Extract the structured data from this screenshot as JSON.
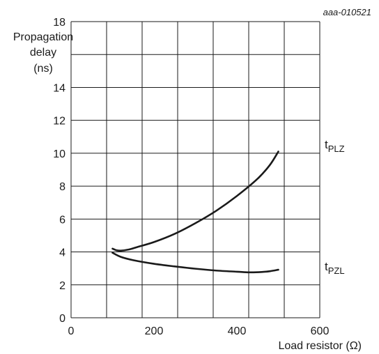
{
  "chart_data": {
    "type": "line",
    "reference": "aaa-010521",
    "ylabel": [
      "Propagation",
      "delay",
      "(ns)"
    ],
    "xlabel": "Load resistor (Ω)",
    "xlim": [
      0,
      600
    ],
    "ylim": [
      0,
      18
    ],
    "x_ticks": [
      0,
      200,
      400,
      600
    ],
    "y_ticks": [
      0,
      2,
      4,
      6,
      8,
      10,
      12,
      14,
      16,
      18
    ],
    "y_tick_labels": [
      "0",
      "2",
      "4",
      "6",
      "8",
      "10",
      "12",
      "14",
      "",
      "18"
    ],
    "grid": true,
    "series": [
      {
        "name": "tPLZ",
        "name_main": "t",
        "name_sub": "PLZ",
        "points": [
          [
            100,
            4.2
          ],
          [
            110,
            4.1
          ],
          [
            120,
            4.08
          ],
          [
            140,
            4.15
          ],
          [
            160,
            4.3
          ],
          [
            200,
            4.6
          ],
          [
            250,
            5.1
          ],
          [
            300,
            5.75
          ],
          [
            350,
            6.5
          ],
          [
            400,
            7.4
          ],
          [
            450,
            8.45
          ],
          [
            480,
            9.3
          ],
          [
            500,
            10.1
          ]
        ]
      },
      {
        "name": "tPZL",
        "name_main": "t",
        "name_sub": "PZL",
        "points": [
          [
            100,
            3.95
          ],
          [
            120,
            3.7
          ],
          [
            150,
            3.5
          ],
          [
            200,
            3.28
          ],
          [
            250,
            3.12
          ],
          [
            300,
            2.98
          ],
          [
            350,
            2.87
          ],
          [
            400,
            2.8
          ],
          [
            430,
            2.76
          ],
          [
            460,
            2.78
          ],
          [
            480,
            2.83
          ],
          [
            500,
            2.92
          ]
        ]
      }
    ]
  }
}
